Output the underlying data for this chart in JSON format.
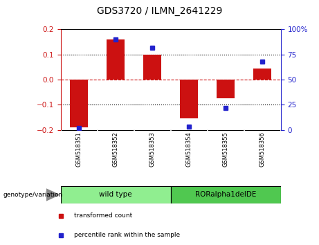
{
  "title": "GDS3720 / ILMN_2641229",
  "samples": [
    "GSM518351",
    "GSM518352",
    "GSM518353",
    "GSM518354",
    "GSM518355",
    "GSM518356"
  ],
  "red_values": [
    -0.19,
    0.16,
    0.1,
    -0.155,
    -0.075,
    0.045
  ],
  "blue_values": [
    2,
    90,
    82,
    3,
    22,
    68
  ],
  "ylim_left": [
    -0.2,
    0.2
  ],
  "ylim_right": [
    0,
    100
  ],
  "yticks_left": [
    -0.2,
    -0.1,
    0,
    0.1,
    0.2
  ],
  "yticks_right": [
    0,
    25,
    50,
    75,
    100
  ],
  "ytick_labels_right": [
    "0",
    "25",
    "50",
    "75",
    "100%"
  ],
  "hlines_dotted": [
    -0.1,
    0.1
  ],
  "hline_red_dashed": 0.0,
  "groups": [
    {
      "label": "wild type",
      "samples": [
        0,
        1,
        2
      ],
      "color": "#90ee90"
    },
    {
      "label": "RORalpha1delDE",
      "samples": [
        3,
        4,
        5
      ],
      "color": "#50c850"
    }
  ],
  "group_header": "genotype/variation",
  "legend_red": "transformed count",
  "legend_blue": "percentile rank within the sample",
  "red_color": "#cc1111",
  "blue_color": "#2222cc",
  "bar_width": 0.5,
  "bg_plot": "#ffffff",
  "bg_tick_area": "#c8c8c8",
  "title_fontsize": 10
}
